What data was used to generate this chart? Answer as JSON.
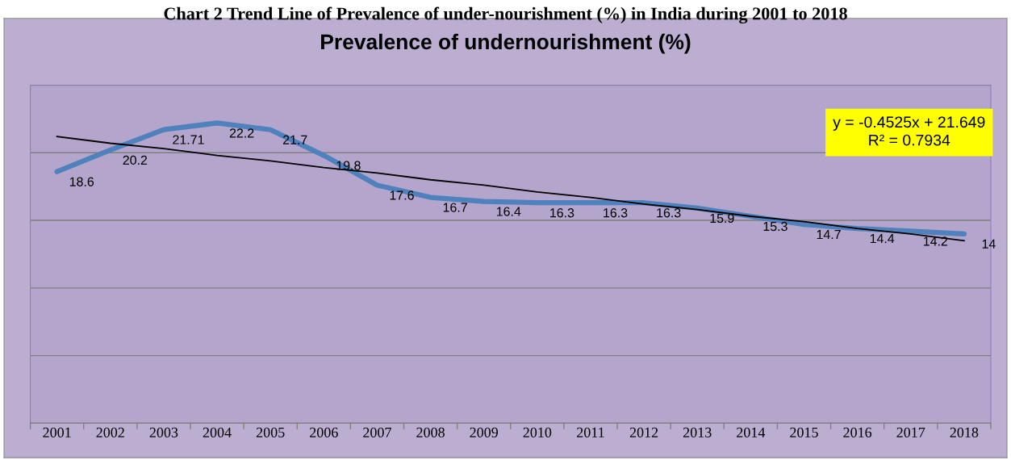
{
  "chart_data": {
    "type": "line",
    "title": "Prevalence of undernourishment (%)",
    "annotations": [
      "Chart 2 Trend Line of Prevalence of under-nourishment (%) in India during 2001 to 2018",
      {
        "text": "y = -0.4525x + 21.649\nR² = 0.7934"
      }
    ],
    "categories": [
      "2001",
      "2002",
      "2003",
      "2004",
      "2005",
      "2006",
      "2007",
      "2008",
      "2009",
      "2010",
      "2011",
      "2012",
      "2013",
      "2014",
      "2015",
      "2016",
      "2017",
      "2018"
    ],
    "series": [
      {
        "color": "#4f81bd",
        "values": [
          18.6,
          20.2,
          21.71,
          22.2,
          21.7,
          19.8,
          17.6,
          16.7,
          16.4,
          16.3,
          16.3,
          16.3,
          15.9,
          15.3,
          14.7,
          14.4,
          14.2,
          14
        ],
        "value_labels": [
          "18.6",
          "20.2",
          "21.71",
          "22.2",
          "21.7",
          "19.8",
          "17.6",
          "16.7",
          "16.4",
          "16.3",
          "16.3",
          "16.3",
          "15.9",
          "15.3",
          "14.7",
          "14.4",
          "14.2",
          "14"
        ]
      },
      {
        "type": "line",
        "color": "#000000",
        "values": [
          21.2,
          20.7,
          20.3,
          19.8,
          19.4,
          18.9,
          18.5,
          18.0,
          17.6,
          17.1,
          16.7,
          16.2,
          15.8,
          15.3,
          14.9,
          14.4,
          14.0,
          13.5
        ]
      }
    ],
    "ylim": [
      0,
      25
    ],
    "yticks": [
      {
        "value": 0,
        "label": null
      },
      {
        "value": 5,
        "label": null
      },
      {
        "value": 10,
        "label": null
      },
      {
        "value": 15,
        "label": null
      },
      {
        "value": 20,
        "label": null
      },
      {
        "value": 25,
        "label": null
      }
    ],
    "tick_labels": "x",
    "grid": "y",
    "legend": false,
    "marker": "none",
    "line_style": "solid"
  }
}
